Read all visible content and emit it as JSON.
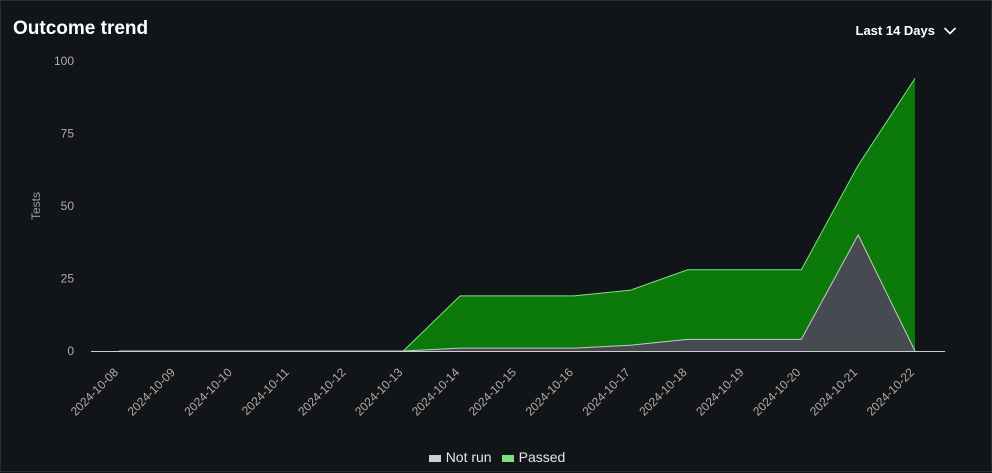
{
  "header": {
    "title": "Outcome trend",
    "range_label": "Last 14 Days"
  },
  "colors": {
    "background": "#111418",
    "passed_fill": "#0b7a0b",
    "passed_line": "#7fe07f",
    "notrun_fill": "#474b51",
    "notrun_line": "#c8c8c8",
    "axis_text": "#b7ab9f",
    "axis_line": "#cfcfcf"
  },
  "chart_data": {
    "type": "area",
    "stacked": true,
    "ylabel": "Tests",
    "xlabel": "",
    "ylim": [
      0,
      100
    ],
    "yticks": [
      0,
      25,
      50,
      75,
      100
    ],
    "grid": false,
    "legend_position": "bottom",
    "categories": [
      "2024-10-08",
      "2024-10-09",
      "2024-10-10",
      "2024-10-11",
      "2024-10-12",
      "2024-10-13",
      "2024-10-14",
      "2024-10-15",
      "2024-10-16",
      "2024-10-17",
      "2024-10-18",
      "2024-10-19",
      "2024-10-20",
      "2024-10-21",
      "2024-10-22"
    ],
    "series": [
      {
        "name": "Not run",
        "values": [
          0,
          0,
          0,
          0,
          0,
          0,
          1,
          1,
          1,
          2,
          4,
          4,
          4,
          40,
          0
        ]
      },
      {
        "name": "Passed",
        "values": [
          0,
          0,
          0,
          0,
          0,
          0,
          18,
          18,
          18,
          19,
          24,
          24,
          24,
          24,
          94
        ]
      }
    ]
  }
}
